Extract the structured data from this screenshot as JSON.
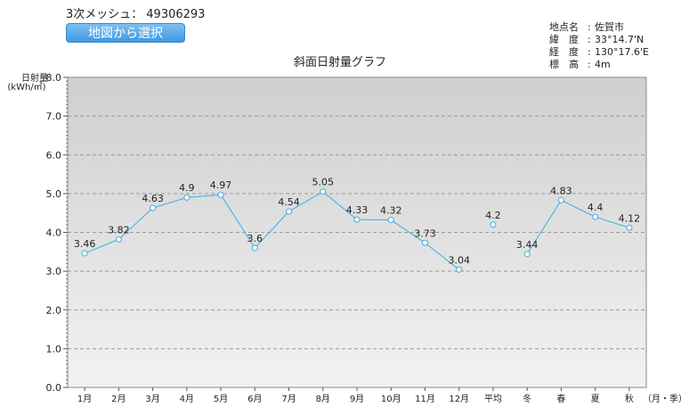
{
  "mesh": {
    "label": "3次メッシュ：",
    "value": "49306293"
  },
  "map_button_label": "地図から選択",
  "location": [
    {
      "key": "地点名",
      "value": "佐賀市"
    },
    {
      "key": "緯　度",
      "value": "33°14.7'N"
    },
    {
      "key": "経　度",
      "value": "130°17.6'E"
    },
    {
      "key": "標　高",
      "value": "4m"
    }
  ],
  "colors": {
    "series": "#39aee0",
    "plot_bg_top": "#cfcfcf",
    "plot_bg_bottom": "#f2f2f2"
  },
  "chart_data": {
    "type": "line",
    "title": "斜面日射量グラフ",
    "ylabel_line1": "日射量",
    "ylabel_line2": "(kWh/㎡)",
    "xlabel": "（月・季）",
    "categories": [
      "1月",
      "2月",
      "3月",
      "4月",
      "5月",
      "6月",
      "7月",
      "8月",
      "9月",
      "10月",
      "11月",
      "12月",
      "平均",
      "冬",
      "春",
      "夏",
      "秋"
    ],
    "ylim": [
      0,
      8
    ],
    "yticks": [
      "0.0",
      "1.0",
      "2.0",
      "3.0",
      "4.0",
      "5.0",
      "6.0",
      "7.0",
      "8.0"
    ],
    "grid": true,
    "segments": [
      [
        0,
        11
      ],
      [
        12,
        12
      ],
      [
        13,
        16
      ]
    ],
    "values": [
      3.46,
      3.82,
      4.63,
      4.9,
      4.97,
      3.6,
      4.54,
      5.05,
      4.33,
      4.32,
      3.73,
      3.04,
      4.2,
      3.44,
      4.83,
      4.4,
      4.12
    ],
    "value_labels": [
      "3.46",
      "3.82",
      "4.63",
      "4.9",
      "4.97",
      "3.6",
      "4.54",
      "5.05",
      "4.33",
      "4.32",
      "3.73",
      "3.04",
      "4.2",
      "3.44",
      "4.83",
      "4.4",
      "4.12"
    ]
  }
}
